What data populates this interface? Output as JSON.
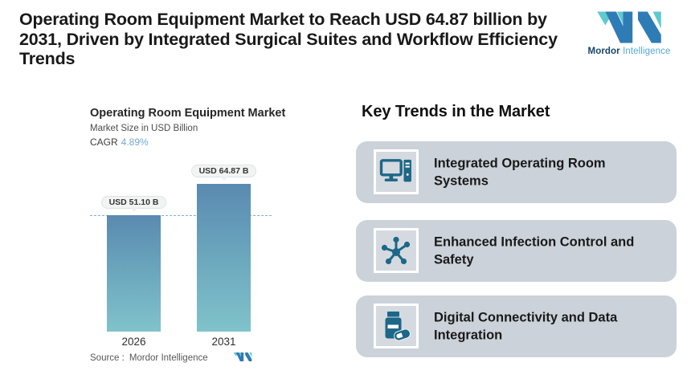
{
  "header": {
    "title_lines": [
      "Operating Room Equipment Market to Reach USD 64.87 billion by",
      "2031, Driven by Integrated Surgical Suites and Workflow Efficiency",
      "Trends"
    ],
    "logo": {
      "brand_bold": "Mordor",
      "brand_light": "Intelligence"
    }
  },
  "chart": {
    "title": "Operating Room Equipment Market",
    "subtitle": "Market Size in USD Billion",
    "cagr_label": "CAGR",
    "cagr_value": "4.89%",
    "source_label": "Source :",
    "source_value": "Mordor Intelligence"
  },
  "chart_data": {
    "type": "bar",
    "title": "Operating Room Equipment Market",
    "subtitle": "Market Size in USD Billion",
    "cagr": "4.89%",
    "categories": [
      "2026",
      "2031"
    ],
    "values": [
      51.1,
      64.87
    ],
    "bar_labels": [
      "USD 51.10 B",
      "USD 64.87 B"
    ],
    "unit": "USD Billion",
    "ylim": [
      0,
      64.87
    ],
    "threshold_line_at": 51.1,
    "legend": [],
    "grid": "off",
    "colors": {
      "bar_top": "#5a8ab0",
      "bar_bottom": "#80c3cb",
      "dashed_line": "#7fafce"
    }
  },
  "trends": {
    "heading": "Key Trends in the Market",
    "items": [
      {
        "icon": "computer-icon",
        "lines": [
          "Integrated Operating Room",
          "Systems"
        ]
      },
      {
        "icon": "molecule-icon",
        "lines": [
          "Enhanced Infection Control and",
          "Safety"
        ]
      },
      {
        "icon": "pill-bottle-icon",
        "lines": [
          "Digital Connectivity and Data",
          "Integration"
        ]
      }
    ]
  },
  "colors": {
    "accent_icon_blue": "#1d6787",
    "card_background": "#ccd2d9",
    "logo_teal": "#5fc9cf",
    "logo_blue": "#2e7cb5"
  }
}
